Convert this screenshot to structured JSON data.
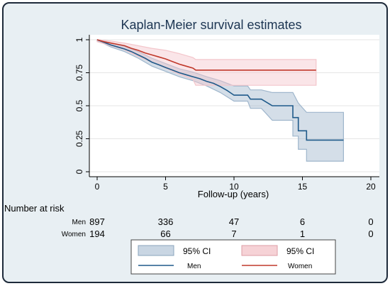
{
  "chart_data": {
    "type": "line",
    "title": "Kaplan-Meier survival estimates",
    "xlabel": "Follow-up (years)",
    "ylabel": "",
    "xlim": [
      0,
      20
    ],
    "ylim": [
      0,
      1
    ],
    "x_ticks": [
      0,
      5,
      10,
      15,
      20
    ],
    "y_ticks": [
      0,
      0.25,
      0.5,
      0.75,
      1
    ],
    "y_tick_labels": [
      "0",
      "0.25",
      "0.5",
      "0.75",
      "1"
    ],
    "grid": "horizontal",
    "series": [
      {
        "name": "Men",
        "color": "#1f5a8a",
        "ci_color": "#9fb6cc",
        "points": [
          [
            0,
            1
          ],
          [
            0.5,
            0.98
          ],
          [
            1,
            0.96
          ],
          [
            1.5,
            0.945
          ],
          [
            2,
            0.93
          ],
          [
            2.5,
            0.91
          ],
          [
            3,
            0.885
          ],
          [
            3.5,
            0.86
          ],
          [
            4,
            0.83
          ],
          [
            4.5,
            0.81
          ],
          [
            5,
            0.79
          ],
          [
            5.5,
            0.77
          ],
          [
            6,
            0.75
          ],
          [
            6.5,
            0.735
          ],
          [
            7,
            0.72
          ],
          [
            7.5,
            0.705
          ],
          [
            8,
            0.685
          ],
          [
            8.5,
            0.67
          ],
          [
            9,
            0.645
          ],
          [
            9.5,
            0.615
          ],
          [
            10,
            0.58
          ],
          [
            11,
            0.58
          ],
          [
            11.2,
            0.55
          ],
          [
            12,
            0.55
          ],
          [
            12.8,
            0.5
          ],
          [
            14.3,
            0.5
          ],
          [
            14.3,
            0.41
          ],
          [
            14.7,
            0.41
          ],
          [
            14.7,
            0.31
          ],
          [
            15.3,
            0.31
          ],
          [
            15.3,
            0.24
          ],
          [
            18,
            0.24
          ]
        ],
        "ci_upper": [
          [
            0,
            1
          ],
          [
            0.5,
            0.99
          ],
          [
            1,
            0.975
          ],
          [
            2,
            0.95
          ],
          [
            3,
            0.91
          ],
          [
            4,
            0.86
          ],
          [
            5,
            0.82
          ],
          [
            6,
            0.78
          ],
          [
            7,
            0.755
          ],
          [
            8,
            0.72
          ],
          [
            9,
            0.69
          ],
          [
            10,
            0.65
          ],
          [
            11,
            0.65
          ],
          [
            11.2,
            0.62
          ],
          [
            12,
            0.62
          ],
          [
            12.8,
            0.6
          ],
          [
            14.3,
            0.6
          ],
          [
            14.7,
            0.52
          ],
          [
            15.3,
            0.45
          ],
          [
            18,
            0.45
          ]
        ],
        "ci_lower": [
          [
            0,
            0.99
          ],
          [
            0.5,
            0.97
          ],
          [
            1,
            0.945
          ],
          [
            2,
            0.91
          ],
          [
            3,
            0.86
          ],
          [
            4,
            0.8
          ],
          [
            5,
            0.76
          ],
          [
            6,
            0.72
          ],
          [
            7,
            0.69
          ],
          [
            8,
            0.65
          ],
          [
            9,
            0.6
          ],
          [
            10,
            0.535
          ],
          [
            11,
            0.535
          ],
          [
            11.2,
            0.48
          ],
          [
            12,
            0.48
          ],
          [
            12.8,
            0.39
          ],
          [
            14.3,
            0.39
          ],
          [
            14.3,
            0.27
          ],
          [
            14.7,
            0.27
          ],
          [
            14.7,
            0.17
          ],
          [
            15.3,
            0.17
          ],
          [
            15.3,
            0.08
          ],
          [
            18,
            0.08
          ]
        ]
      },
      {
        "name": "Women",
        "color": "#c0392b",
        "ci_color": "#f3c6cb",
        "points": [
          [
            0,
            1
          ],
          [
            0.5,
            0.985
          ],
          [
            1,
            0.975
          ],
          [
            1.5,
            0.965
          ],
          [
            2,
            0.955
          ],
          [
            2.5,
            0.935
          ],
          [
            3,
            0.92
          ],
          [
            3.5,
            0.9
          ],
          [
            4,
            0.885
          ],
          [
            4.5,
            0.87
          ],
          [
            5,
            0.855
          ],
          [
            5.5,
            0.835
          ],
          [
            6,
            0.815
          ],
          [
            6.5,
            0.8
          ],
          [
            7,
            0.785
          ],
          [
            7.2,
            0.77
          ],
          [
            16,
            0.77
          ]
        ],
        "ci_upper": [
          [
            0,
            1
          ],
          [
            1,
            0.99
          ],
          [
            2,
            0.975
          ],
          [
            3,
            0.955
          ],
          [
            4,
            0.935
          ],
          [
            5,
            0.92
          ],
          [
            6,
            0.895
          ],
          [
            7,
            0.865
          ],
          [
            7.2,
            0.85
          ],
          [
            16,
            0.85
          ]
        ],
        "ci_lower": [
          [
            0,
            0.985
          ],
          [
            1,
            0.955
          ],
          [
            2,
            0.925
          ],
          [
            3,
            0.875
          ],
          [
            4,
            0.83
          ],
          [
            5,
            0.785
          ],
          [
            6,
            0.74
          ],
          [
            7,
            0.7
          ],
          [
            7.2,
            0.655
          ],
          [
            16,
            0.655
          ]
        ]
      }
    ]
  },
  "risk_table": {
    "heading": "Number at risk",
    "rows": [
      {
        "label": "Men",
        "values": [
          "897",
          "336",
          "47",
          "6",
          "0"
        ]
      },
      {
        "label": "Women",
        "values": [
          "194",
          "66",
          "7",
          "1",
          "0"
        ]
      }
    ]
  },
  "legend": {
    "ci_label_1": "95% CI",
    "ci_label_2": "95% CI",
    "men_label": "Men",
    "women_label": "Women"
  }
}
